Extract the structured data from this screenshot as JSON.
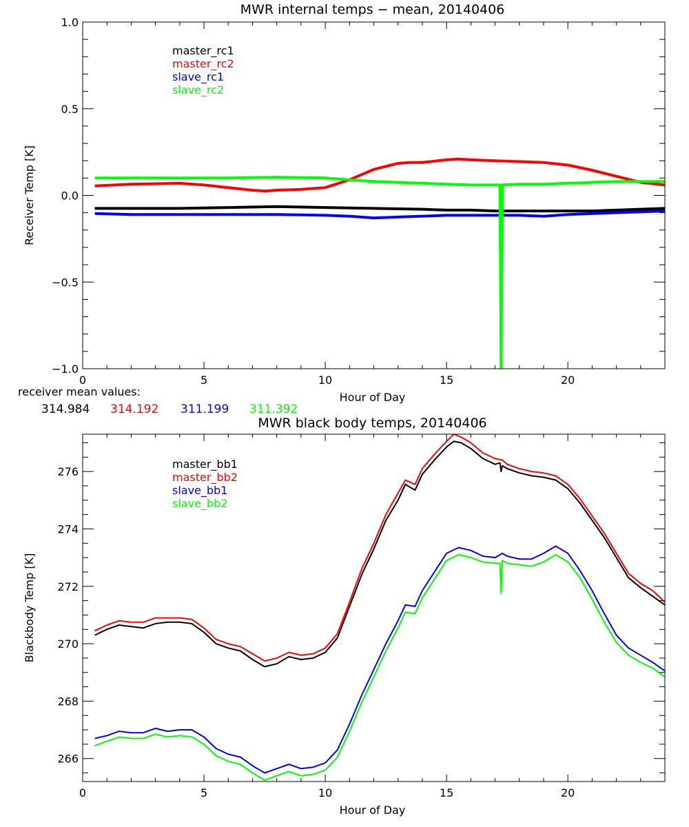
{
  "colors": {
    "master_1": "#000000",
    "master_2": "#ff0000",
    "slave_1": "#0000ff",
    "slave_2": "#00ff00"
  },
  "mean_values": {
    "label": "receiver mean values:",
    "items": [
      {
        "text": "314.984",
        "color": "#000000"
      },
      {
        "text": "314.192",
        "color": "#ff0000"
      },
      {
        "text": "311.199",
        "color": "#0000ff"
      },
      {
        "text": "311.392",
        "color": "#00ff00"
      }
    ]
  },
  "chart_data": [
    {
      "type": "line",
      "title": "MWR internal temps − mean, 20140406",
      "xlabel": "Hour of Day",
      "ylabel": "Receiver Temp [K]",
      "xlim": [
        0,
        24
      ],
      "ylim": [
        -1.0,
        1.0
      ],
      "xticks": [
        0,
        5,
        10,
        15,
        20
      ],
      "xtick_labels": [
        "0",
        "5",
        "10",
        "15",
        "20"
      ],
      "yticks": [
        -1.0,
        -0.5,
        0.0,
        0.5,
        1.0
      ],
      "ytick_labels": [
        "−1.0",
        "−0.5",
        "0.0",
        "0.5",
        "1.0"
      ],
      "grid": false,
      "legend_position": "top-left",
      "series": [
        {
          "name": "master_rc1",
          "color": "#000000",
          "x": [
            0.5,
            2,
            4,
            6,
            8,
            10,
            12,
            14,
            15,
            16,
            17,
            18,
            19,
            20,
            21,
            22,
            23,
            24
          ],
          "y": [
            -0.075,
            -0.075,
            -0.075,
            -0.07,
            -0.065,
            -0.07,
            -0.075,
            -0.08,
            -0.085,
            -0.085,
            -0.09,
            -0.09,
            -0.09,
            -0.09,
            -0.09,
            -0.085,
            -0.08,
            -0.075
          ]
        },
        {
          "name": "master_rc2",
          "color": "#ff0000",
          "x": [
            0.5,
            2,
            4,
            5,
            6,
            7,
            7.5,
            8,
            9,
            10,
            11,
            12,
            13,
            13.5,
            14,
            15,
            15.5,
            16,
            17,
            18,
            19,
            20,
            21,
            22,
            23,
            24
          ],
          "y": [
            0.055,
            0.065,
            0.07,
            0.06,
            0.045,
            0.03,
            0.025,
            0.03,
            0.035,
            0.045,
            0.09,
            0.15,
            0.185,
            0.19,
            0.19,
            0.205,
            0.21,
            0.205,
            0.2,
            0.195,
            0.19,
            0.175,
            0.145,
            0.11,
            0.075,
            0.06
          ]
        },
        {
          "name": "slave_rc1",
          "color": "#0000ff",
          "x": [
            0.5,
            2,
            4,
            6,
            8,
            10,
            11,
            12,
            13,
            14,
            15,
            16,
            17,
            18,
            19,
            20,
            21,
            22,
            23,
            24
          ],
          "y": [
            -0.105,
            -0.11,
            -0.11,
            -0.11,
            -0.11,
            -0.115,
            -0.12,
            -0.13,
            -0.125,
            -0.12,
            -0.115,
            -0.115,
            -0.115,
            -0.115,
            -0.12,
            -0.11,
            -0.105,
            -0.1,
            -0.095,
            -0.09
          ]
        },
        {
          "name": "slave_rc2",
          "color": "#00ff00",
          "x": [
            0.5,
            2,
            4,
            6,
            8,
            10,
            11,
            12,
            13,
            14,
            15,
            16,
            17,
            17.2,
            17.25,
            17.3,
            18,
            19,
            20,
            21,
            22,
            23,
            24
          ],
          "y": [
            0.1,
            0.1,
            0.1,
            0.1,
            0.105,
            0.1,
            0.09,
            0.08,
            0.075,
            0.07,
            0.065,
            0.06,
            0.06,
            0.06,
            -1.0,
            0.06,
            0.065,
            0.065,
            0.07,
            0.075,
            0.08,
            0.08,
            0.08
          ]
        }
      ]
    },
    {
      "type": "line",
      "title": "MWR black body temps, 20140406",
      "xlabel": "Hour of Day",
      "ylabel": "Blackbody Temp [K]",
      "xlim": [
        0,
        24
      ],
      "ylim": [
        265.2,
        277.3
      ],
      "xticks": [
        0,
        5,
        10,
        15,
        20
      ],
      "xtick_labels": [
        "0",
        "5",
        "10",
        "15",
        "20"
      ],
      "yticks": [
        266,
        268,
        270,
        272,
        274,
        276
      ],
      "ytick_labels": [
        "266",
        "268",
        "270",
        "272",
        "274",
        "276"
      ],
      "grid": false,
      "legend_position": "top-left",
      "series": [
        {
          "name": "master_bb1",
          "color": "#000000",
          "x": [
            0.5,
            1,
            1.5,
            2,
            2.5,
            3,
            3.5,
            4,
            4.5,
            5,
            5.5,
            6,
            6.5,
            7,
            7.5,
            8,
            8.5,
            9,
            9.5,
            10,
            10.5,
            11,
            11.5,
            12,
            12.5,
            13,
            13.3,
            13.7,
            14,
            14.5,
            15,
            15.3,
            15.6,
            16,
            16.5,
            17,
            17.2,
            17.25,
            17.3,
            17.5,
            18,
            18.5,
            19,
            19.5,
            20,
            20.5,
            21,
            21.5,
            22,
            22.5,
            23,
            23.5,
            24
          ],
          "y": [
            270.3,
            270.5,
            270.65,
            270.6,
            270.55,
            270.7,
            270.75,
            270.75,
            270.7,
            270.4,
            270.0,
            269.85,
            269.75,
            269.45,
            269.2,
            269.3,
            269.55,
            269.45,
            269.5,
            269.7,
            270.2,
            271.3,
            272.4,
            273.3,
            274.3,
            275.0,
            275.55,
            275.35,
            275.9,
            276.4,
            276.85,
            277.05,
            277.0,
            276.8,
            276.45,
            276.25,
            276.3,
            276.0,
            276.2,
            276.1,
            275.95,
            275.85,
            275.8,
            275.7,
            275.4,
            274.9,
            274.3,
            273.7,
            273.0,
            272.3,
            271.95,
            271.65,
            271.35
          ]
        },
        {
          "name": "master_bb2",
          "color": "#ff0000",
          "x": [
            0.5,
            1,
            1.5,
            2,
            2.5,
            3,
            3.5,
            4,
            4.5,
            5,
            5.5,
            6,
            6.5,
            7,
            7.5,
            8,
            8.5,
            9,
            9.5,
            10,
            10.5,
            11,
            11.5,
            12,
            12.5,
            13,
            13.3,
            13.7,
            14,
            14.5,
            15,
            15.3,
            15.6,
            16,
            16.5,
            17,
            17.3,
            17.5,
            18,
            18.5,
            19,
            19.5,
            20,
            20.5,
            21,
            21.5,
            22,
            22.5,
            23,
            23.5,
            24
          ],
          "y": [
            270.45,
            270.65,
            270.8,
            270.75,
            270.75,
            270.9,
            270.9,
            270.9,
            270.85,
            270.55,
            270.15,
            270.0,
            269.9,
            269.65,
            269.4,
            269.5,
            269.7,
            269.6,
            269.65,
            269.85,
            270.35,
            271.45,
            272.6,
            273.5,
            274.5,
            275.25,
            275.7,
            275.55,
            276.1,
            276.6,
            277.05,
            277.3,
            277.2,
            277.0,
            276.65,
            276.45,
            276.4,
            276.25,
            276.1,
            276.0,
            275.95,
            275.85,
            275.55,
            275.05,
            274.45,
            273.85,
            273.15,
            272.45,
            272.1,
            271.85,
            271.45
          ]
        },
        {
          "name": "slave_bb1",
          "color": "#0000ff",
          "x": [
            0.5,
            1,
            1.5,
            2,
            2.5,
            3,
            3.5,
            4,
            4.5,
            5,
            5.5,
            6,
            6.5,
            7,
            7.5,
            8,
            8.5,
            9,
            9.5,
            10,
            10.5,
            11,
            11.5,
            12,
            12.5,
            13,
            13.3,
            13.7,
            14,
            14.5,
            15,
            15.5,
            16,
            16.5,
            17,
            17.3,
            17.5,
            18,
            18.5,
            19,
            19.5,
            20,
            20.5,
            21,
            21.5,
            22,
            22.5,
            23,
            23.5,
            24
          ],
          "y": [
            266.7,
            266.8,
            266.95,
            266.9,
            266.9,
            267.05,
            266.95,
            267.0,
            267.0,
            266.75,
            266.35,
            266.15,
            266.05,
            265.75,
            265.5,
            265.65,
            265.8,
            265.65,
            265.7,
            265.85,
            266.3,
            267.2,
            268.2,
            269.1,
            270.0,
            270.8,
            271.35,
            271.3,
            271.85,
            272.5,
            273.15,
            273.35,
            273.25,
            273.05,
            273.0,
            273.15,
            273.05,
            272.95,
            272.95,
            273.15,
            273.4,
            273.15,
            272.55,
            271.85,
            271.05,
            270.3,
            269.85,
            269.6,
            269.35,
            269.05
          ]
        },
        {
          "name": "slave_bb2",
          "color": "#00ff00",
          "x": [
            0.5,
            1,
            1.5,
            2,
            2.5,
            3,
            3.5,
            4,
            4.5,
            5,
            5.5,
            6,
            6.5,
            7,
            7.5,
            8,
            8.5,
            9,
            9.5,
            10,
            10.5,
            11,
            11.5,
            12,
            12.5,
            13,
            13.3,
            13.7,
            14,
            14.5,
            15,
            15.5,
            16,
            16.5,
            17,
            17.2,
            17.25,
            17.3,
            17.5,
            18,
            18.5,
            19,
            19.5,
            20,
            20.5,
            21,
            21.5,
            22,
            22.5,
            23,
            23.5,
            24
          ],
          "y": [
            266.45,
            266.6,
            266.75,
            266.7,
            266.7,
            266.85,
            266.75,
            266.8,
            266.75,
            266.5,
            266.1,
            265.9,
            265.8,
            265.5,
            265.25,
            265.4,
            265.55,
            265.4,
            265.45,
            265.6,
            266.05,
            266.95,
            267.95,
            268.85,
            269.75,
            270.55,
            271.1,
            271.05,
            271.6,
            272.25,
            272.9,
            273.1,
            273.0,
            272.85,
            272.8,
            272.8,
            271.75,
            272.9,
            272.8,
            272.75,
            272.7,
            272.85,
            273.1,
            272.85,
            272.3,
            271.55,
            270.75,
            270.05,
            269.6,
            269.35,
            269.15,
            268.85
          ]
        }
      ]
    }
  ]
}
